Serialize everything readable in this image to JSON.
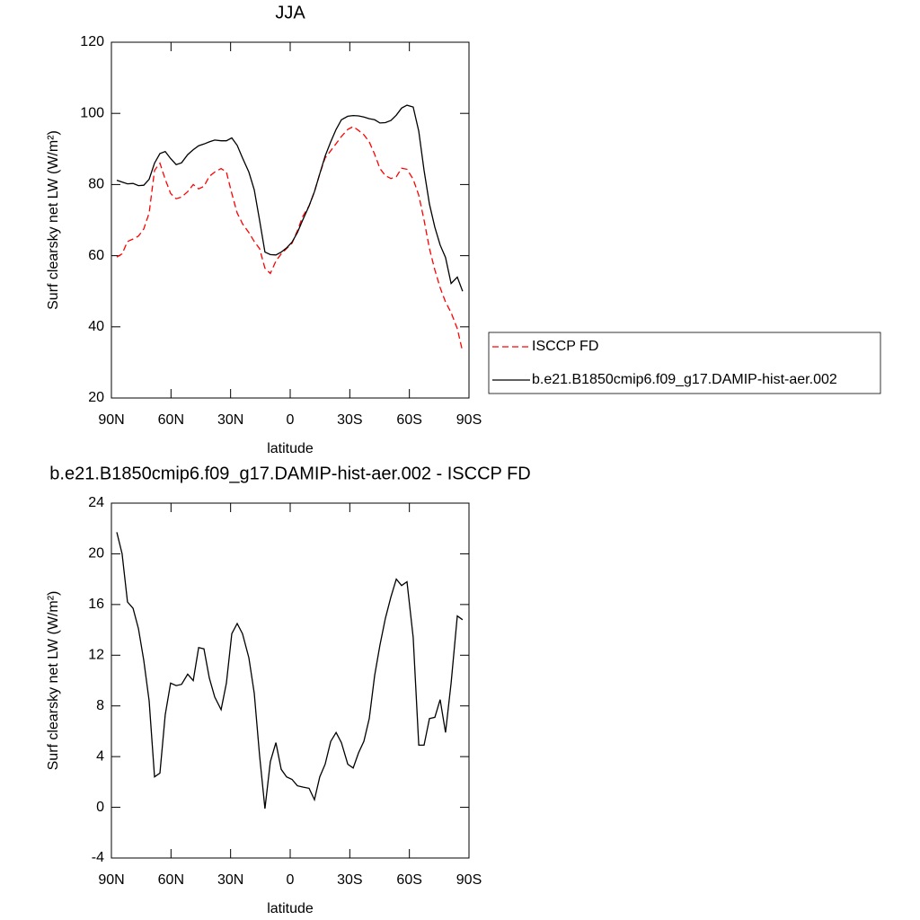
{
  "chart_data": [
    {
      "type": "line",
      "title": "JJA",
      "xlabel": "latitude",
      "ylabel": "Surf clearsky net LW (W/m²)",
      "x": [
        87.3,
        84.6,
        81.9,
        79.1,
        76.4,
        73.7,
        71.0,
        68.3,
        65.6,
        62.9,
        60.2,
        57.4,
        54.7,
        51.6,
        48.8,
        46.1,
        43.4,
        40.7,
        38.0,
        34.8,
        32.1,
        29.4,
        26.7,
        24.0,
        20.8,
        18.1,
        15.4,
        12.7,
        10.0,
        7.2,
        4.5,
        1.8,
        -0.9,
        -3.6,
        -6.3,
        -9.5,
        -12.2,
        -14.9,
        -17.6,
        -20.4,
        -23.1,
        -25.8,
        -29.0,
        -31.7,
        -34.4,
        -37.1,
        -39.8,
        -42.5,
        -45.2,
        -47.9,
        -50.7,
        -53.4,
        -56.1,
        -58.8,
        -61.9,
        -64.7,
        -67.4,
        -70.1,
        -72.8,
        -75.5,
        -78.2,
        -81.0,
        -84.1,
        -86.8
      ],
      "series": [
        {
          "name": "ISCCP FD",
          "color": "#ff0000",
          "line_style": "dashed",
          "values": [
            59.6,
            60.5,
            64,
            64.7,
            65.5,
            67.5,
            72,
            84,
            86,
            81.5,
            77.5,
            76,
            76.5,
            78,
            80,
            78.8,
            79.5,
            82.3,
            83.5,
            84.5,
            83.5,
            77.5,
            72,
            69,
            66.5,
            64,
            62,
            56.5,
            55,
            58.5,
            60.5,
            62,
            63.5,
            67,
            71,
            74,
            78,
            83,
            87.5,
            89.5,
            91.5,
            93.5,
            95.5,
            96.3,
            95.2,
            94,
            92,
            88.5,
            84.5,
            82.5,
            81.7,
            82.2,
            84.6,
            84.3,
            81.5,
            77,
            70,
            62,
            56,
            51,
            47,
            44,
            39.5,
            33
          ]
        },
        {
          "name": "b.e21.B1850cmip6.f09_g17.DAMIP-hist-aer.002",
          "color": "#000000",
          "line_style": "solid",
          "values": [
            81.2,
            80.7,
            80.2,
            80.3,
            79.7,
            79.8,
            81.5,
            86,
            88.7,
            89.3,
            87.3,
            85.6,
            86.1,
            88.4,
            89.8,
            90.9,
            91.4,
            92,
            92.5,
            92.3,
            92.3,
            93.1,
            91,
            87.5,
            83.5,
            78.5,
            70,
            61,
            60.3,
            60.2,
            61,
            62.2,
            63.8,
            66.5,
            70,
            74,
            78,
            83,
            88,
            92,
            95.5,
            98.2,
            99.2,
            99.4,
            99.3,
            99,
            98.5,
            98.2,
            97.3,
            97.4,
            98,
            99.5,
            101.5,
            102.3,
            101.8,
            95,
            84,
            74.5,
            68,
            63,
            59.5,
            52.2,
            54,
            50
          ]
        }
      ],
      "xlim": [
        90,
        -90
      ],
      "xticks": [
        {
          "value": 90,
          "label": "90N"
        },
        {
          "value": 60,
          "label": "60N"
        },
        {
          "value": 30,
          "label": "30N"
        },
        0,
        {
          "value": -30,
          "label": "30S"
        },
        {
          "value": -60,
          "label": "60S"
        },
        {
          "value": -90,
          "label": "90S"
        }
      ],
      "ylim": [
        20,
        120
      ],
      "yticks": [
        20,
        40,
        60,
        80,
        100,
        120
      ],
      "legend": "right"
    },
    {
      "type": "line",
      "title": "b.e21.B1850cmip6.f09_g17.DAMIP-hist-aer.002 - ISCCP FD",
      "xlabel": "latitude",
      "ylabel": "Surf clearsky net LW (W/m²)",
      "x": [
        87.3,
        84.6,
        81.9,
        79.1,
        76.4,
        73.7,
        71.0,
        68.3,
        65.6,
        62.9,
        60.2,
        57.4,
        54.7,
        51.6,
        48.8,
        46.1,
        43.4,
        40.7,
        38.0,
        34.8,
        32.1,
        29.4,
        26.7,
        24.0,
        20.8,
        18.1,
        15.4,
        12.7,
        10.0,
        7.2,
        4.5,
        1.8,
        -0.9,
        -3.6,
        -6.3,
        -9.5,
        -12.2,
        -14.9,
        -17.6,
        -20.4,
        -23.1,
        -25.8,
        -29.0,
        -31.7,
        -34.4,
        -37.1,
        -39.8,
        -42.5,
        -45.2,
        -47.9,
        -50.7,
        -53.4,
        -56.1,
        -58.8,
        -61.9,
        -64.7,
        -67.4,
        -70.1,
        -72.8,
        -75.5,
        -78.2,
        -81.0,
        -84.1,
        -86.8
      ],
      "series": [
        {
          "color": "#000000",
          "line_style": "solid",
          "values": [
            21.7,
            20,
            16.2,
            15.7,
            14.1,
            11.6,
            8.4,
            2.4,
            2.7,
            7.3,
            9.8,
            9.6,
            9.7,
            10.5,
            10,
            12.6,
            12.5,
            10.2,
            8.7,
            7.7,
            9.8,
            13.7,
            14.5,
            13.7,
            11.8,
            9,
            4.1,
            -0.1,
            3.6,
            5.1,
            3,
            2.4,
            2.2,
            1.7,
            1.6,
            1.5,
            0.6,
            2.4,
            3.4,
            5.2,
            5.9,
            5.1,
            3.4,
            3.1,
            4.3,
            5.2,
            7,
            10.4,
            12.8,
            14.9,
            16.6,
            18,
            17.5,
            17.8,
            13.4,
            4.9,
            4.9,
            7,
            7.1,
            8.5,
            5.9,
            9.8,
            15.1,
            14.8
          ]
        }
      ],
      "xlim": [
        90,
        -90
      ],
      "xticks": [
        {
          "value": 90,
          "label": "90N"
        },
        {
          "value": 60,
          "label": "60N"
        },
        {
          "value": 30,
          "label": "30N"
        },
        0,
        {
          "value": -30,
          "label": "30S"
        },
        {
          "value": -60,
          "label": "60S"
        },
        {
          "value": -90,
          "label": "90S"
        }
      ],
      "ylim": [
        -4,
        24
      ],
      "yticks": [
        -4,
        0,
        4,
        8,
        12,
        16,
        20,
        24
      ]
    }
  ]
}
